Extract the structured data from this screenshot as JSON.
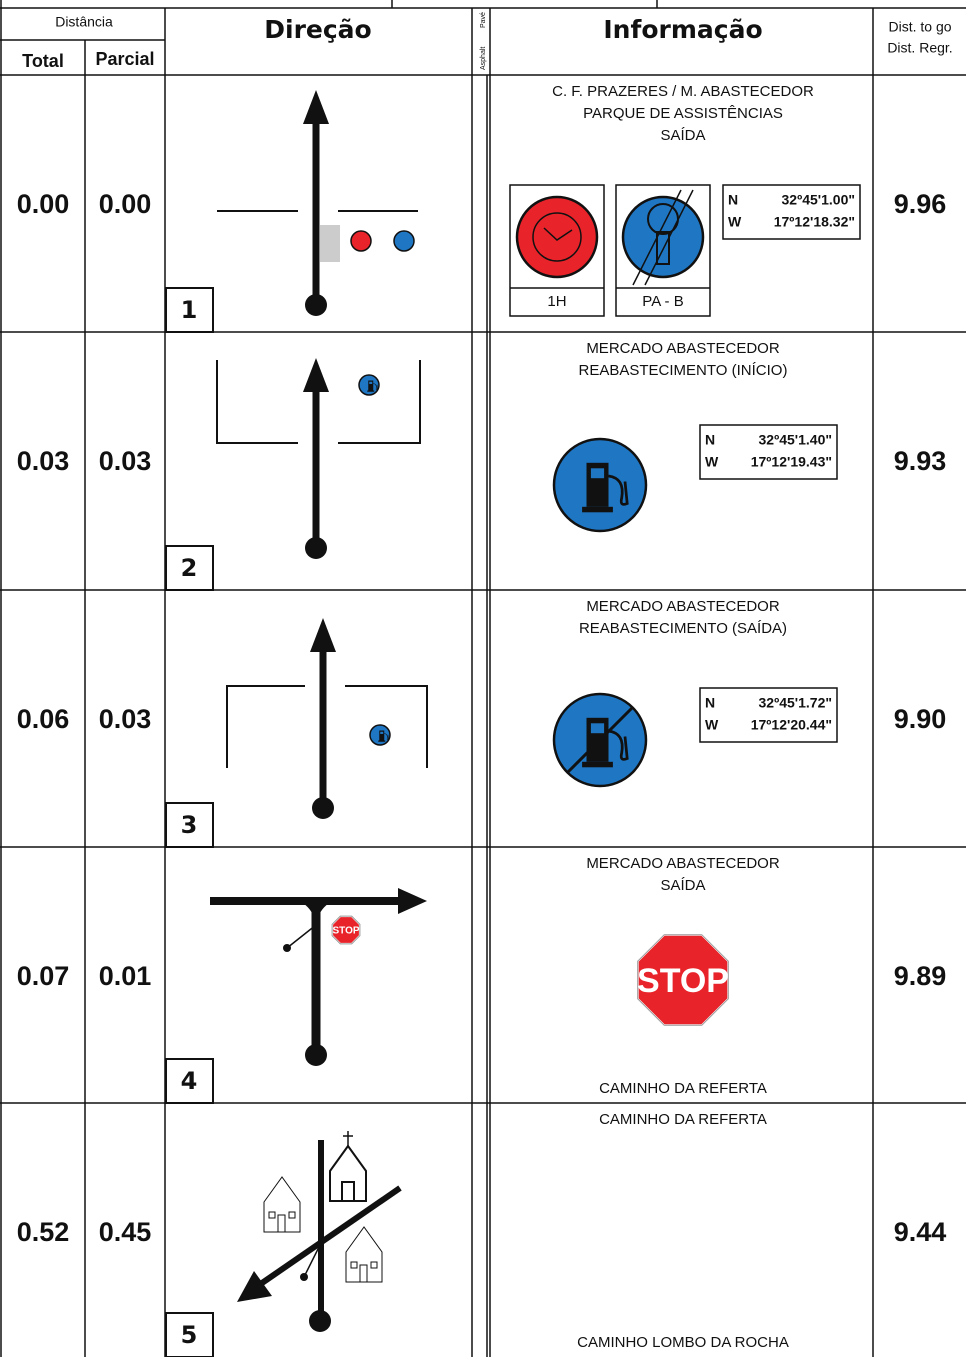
{
  "header": {
    "distancia": "Distância",
    "total": "Total",
    "parcial": "Parcial",
    "direcao": "Direção",
    "asphalt": "Asphalt",
    "pave": "Pavé",
    "informacao": "Informação",
    "dist_to_go": "Dist. to go",
    "dist_regr": "Dist. Regr."
  },
  "rows": [
    {
      "total": "0.00",
      "parcial": "0.00",
      "number": "1",
      "info": [
        "C. F. PRAZERES / M. ABASTECEDOR",
        "PARQUE DE ASSISTÊNCIAS",
        "SAÍDA"
      ],
      "icons": [
        "1H",
        "PA - B"
      ],
      "coords": {
        "n": "N",
        "n_value": "32º45'1.00\"",
        "w": "W",
        "w_value": "17º12'18.32\""
      },
      "dist_to_go": "9.96"
    },
    {
      "total": "0.03",
      "parcial": "0.03",
      "number": "2",
      "info": [
        "MERCADO ABASTECEDOR",
        "REABASTECIMENTO (INÍCIO)"
      ],
      "coords": {
        "n": "N",
        "n_value": "32º45'1.40\"",
        "w": "W",
        "w_value": "17º12'19.43\""
      },
      "dist_to_go": "9.93"
    },
    {
      "total": "0.06",
      "parcial": "0.03",
      "number": "3",
      "info": [
        "MERCADO ABASTECEDOR",
        "REABASTECIMENTO (SAÍDA)"
      ],
      "coords": {
        "n": "N",
        "n_value": "32º45'1.72\"",
        "w": "W",
        "w_value": "17º12'20.44\""
      },
      "dist_to_go": "9.90"
    },
    {
      "total": "0.07",
      "parcial": "0.01",
      "number": "4",
      "info": [
        "MERCADO ABASTECEDOR",
        "SAÍDA"
      ],
      "sign": "STOP",
      "bottom": "CAMINHO DA REFERTA",
      "dist_to_go": "9.89"
    },
    {
      "total": "0.52",
      "parcial": "0.45",
      "number": "5",
      "info": [
        "CAMINHO DA REFERTA"
      ],
      "bottom": "CAMINHO LOMBO DA ROCHA",
      "dist_to_go": "9.44"
    }
  ]
}
